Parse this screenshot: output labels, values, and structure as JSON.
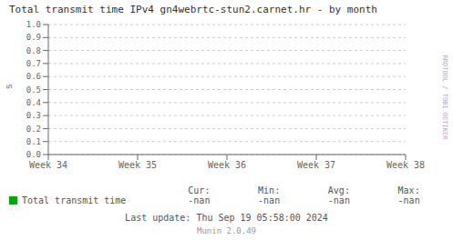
{
  "chart_data": {
    "type": "line",
    "title": "Total transmit time IPv4 gn4webrtc-stun2.carnet.hr - by month",
    "ylabel": "s",
    "categories": [
      "Week 34",
      "Week 35",
      "Week 36",
      "Week 37",
      "Week 38"
    ],
    "series": [
      {
        "name": "Total transmit time",
        "color": "#00aa00",
        "values": [
          null,
          null,
          null,
          null,
          null
        ]
      }
    ],
    "ylim": [
      0.0,
      1.0
    ],
    "yticks": [
      {
        "value": 0.0,
        "label": "0.0"
      },
      0.1,
      0.2,
      0.3,
      0.4,
      0.5,
      0.6,
      0.7,
      0.8,
      0.9,
      {
        "value": 1.0,
        "label": "1.0"
      }
    ],
    "grid": true,
    "legend": "bottom",
    "annotations": [
      "Cur:",
      "-nan",
      "Min:",
      "-nan",
      "Avg:",
      "-nan",
      "Max:",
      "-nan",
      "Last update: Thu Sep 19 05:58:00 2024",
      "Munin 2.0.49",
      "RRDTOOL / TOBI OETIKER"
    ]
  }
}
